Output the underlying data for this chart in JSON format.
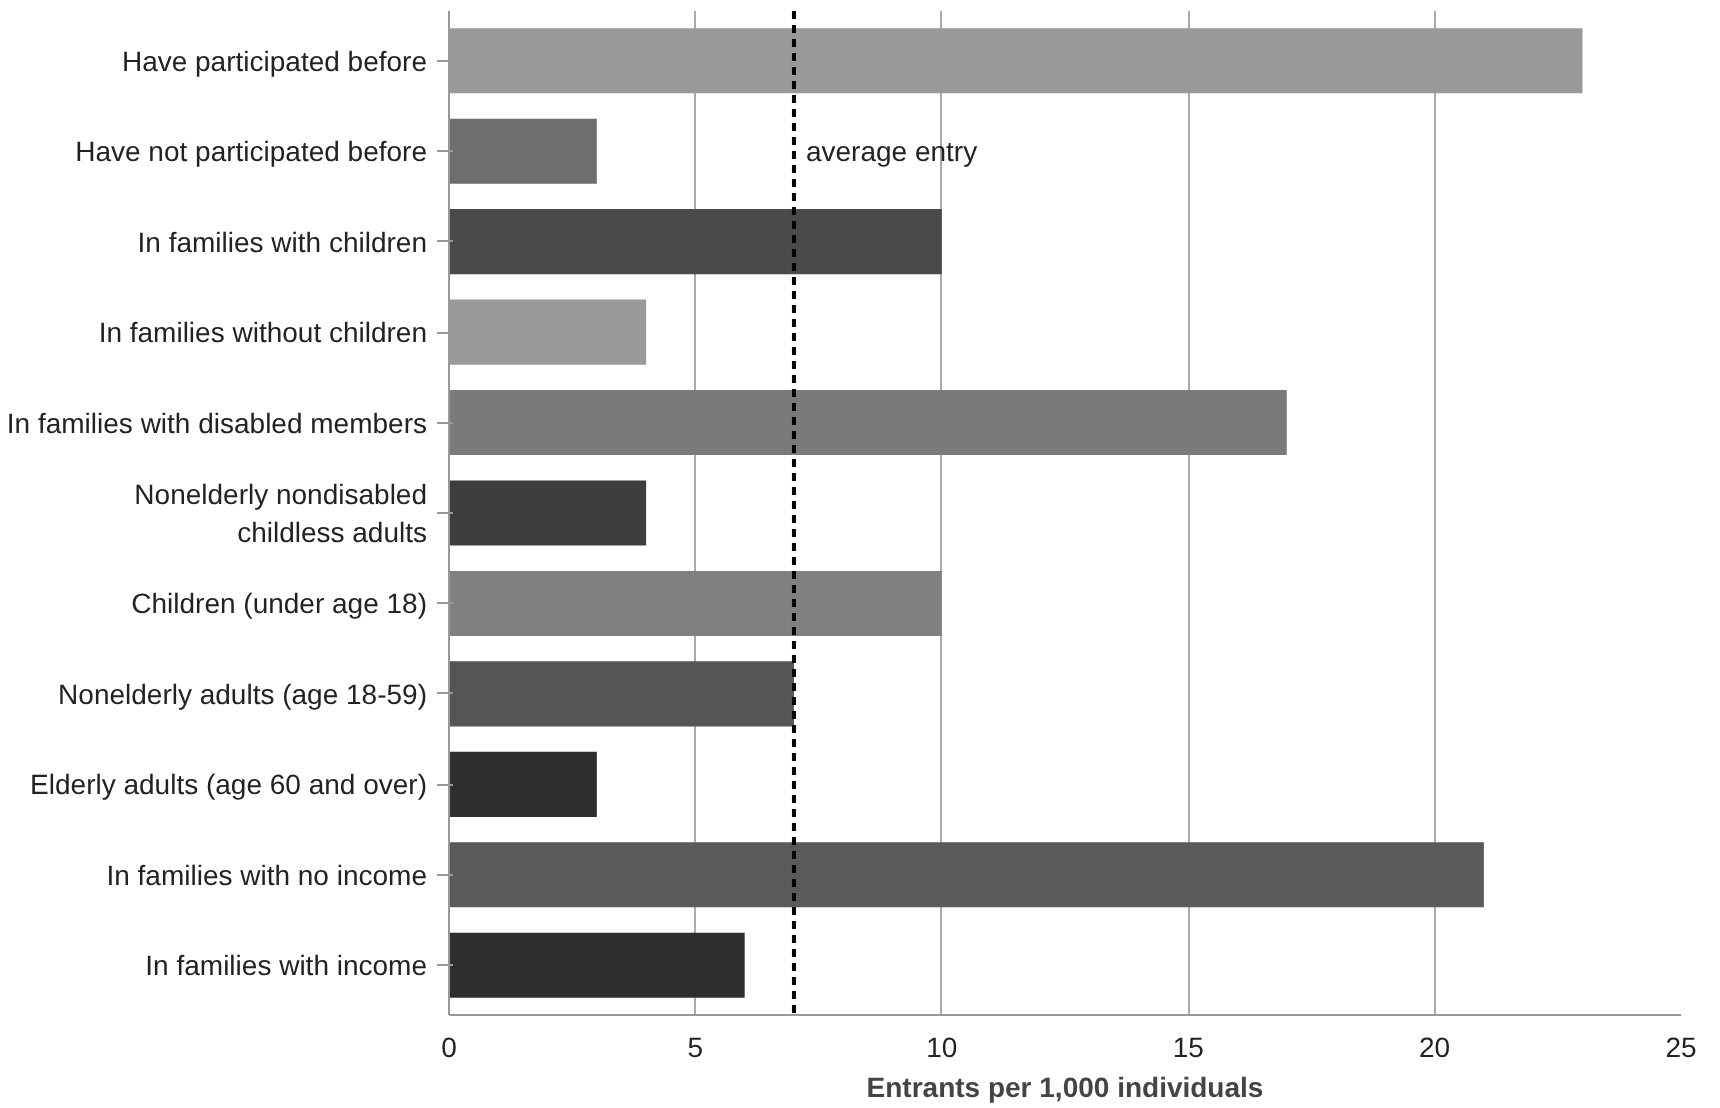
{
  "chart_data": {
    "type": "bar",
    "orientation": "horizontal",
    "xlabel": "Entrants per 1,000 individuals",
    "categories": [
      "Have participated before",
      "Have not participated before",
      "In families with children",
      "In families without children",
      "In families with disabled members",
      "Nonelderly nondisabled\nchildless adults",
      "Children (under age 18)",
      "Nonelderly adults (age 18-59)",
      "Elderly adults (age 60 and over)",
      "In families with no income",
      "In families with income"
    ],
    "values": [
      23,
      3,
      10,
      4,
      17,
      4,
      10,
      7,
      3,
      21,
      6
    ],
    "colors": [
      "#999999",
      "#6e6e6e",
      "#4a4a4a",
      "#999999",
      "#7a7a7a",
      "#3d3d3d",
      "#808080",
      "#555555",
      "#2e2e2e",
      "#5a5a5a",
      "#2e2e2e"
    ],
    "xlim": [
      0,
      25
    ],
    "xticks": [
      0,
      5,
      10,
      15,
      20,
      25
    ],
    "grid": "x",
    "ref_lines": [
      {
        "axis": "x",
        "value": 7,
        "label": "average entry",
        "color": "#000000",
        "line_style": "dashed"
      }
    ]
  }
}
